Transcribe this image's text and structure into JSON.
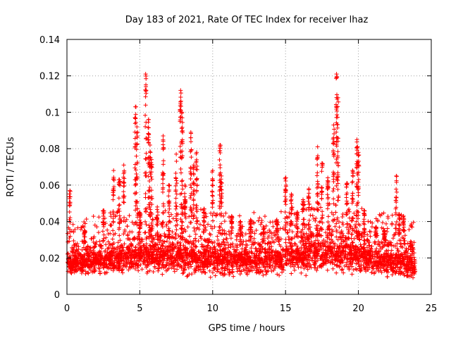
{
  "chart_data": {
    "type": "scatter",
    "title": "Day 183 of 2021, Rate Of TEC Index for receiver lhaz",
    "xlabel": "GPS time / hours",
    "ylabel": "ROTI / TECUs",
    "xlim": [
      0,
      25
    ],
    "ylim": [
      0,
      0.14
    ],
    "x_ticks": [
      "0",
      "5",
      "10",
      "15",
      "20",
      "25"
    ],
    "y_ticks": [
      "0",
      "0.02",
      "0.04",
      "0.06",
      "0.08",
      "0.1",
      "0.12",
      "0.14"
    ],
    "grid": true,
    "marker": "plus",
    "colors": {
      "series": "#ff0000",
      "grid": "#a0a0a0",
      "axes": "#000000"
    },
    "envelope": {
      "x": [
        0,
        1,
        2,
        3,
        4,
        5,
        6,
        7,
        8,
        9,
        10,
        11,
        12,
        13,
        14,
        15,
        16,
        17,
        18,
        19,
        20,
        21,
        22,
        23,
        24
      ],
      "low": [
        0.01,
        0.009,
        0.009,
        0.009,
        0.009,
        0.009,
        0.009,
        0.009,
        0.009,
        0.009,
        0.008,
        0.008,
        0.008,
        0.008,
        0.008,
        0.009,
        0.009,
        0.009,
        0.009,
        0.009,
        0.009,
        0.008,
        0.008,
        0.006,
        0.006
      ],
      "high": [
        0.022,
        0.024,
        0.026,
        0.027,
        0.029,
        0.03,
        0.031,
        0.031,
        0.03,
        0.029,
        0.028,
        0.027,
        0.027,
        0.027,
        0.028,
        0.03,
        0.031,
        0.032,
        0.032,
        0.031,
        0.03,
        0.028,
        0.027,
        0.026,
        0.022
      ]
    },
    "spikes": [
      [
        0.2,
        0.057
      ],
      [
        1.2,
        0.035
      ],
      [
        2.5,
        0.046
      ],
      [
        3.2,
        0.068
      ],
      [
        3.6,
        0.063
      ],
      [
        3.9,
        0.071
      ],
      [
        4.7,
        0.103
      ],
      [
        4.8,
        0.092
      ],
      [
        5.0,
        0.045
      ],
      [
        5.4,
        0.121
      ],
      [
        5.6,
        0.096
      ],
      [
        5.7,
        0.082
      ],
      [
        5.8,
        0.074
      ],
      [
        6.2,
        0.048
      ],
      [
        6.6,
        0.087
      ],
      [
        7.0,
        0.06
      ],
      [
        7.5,
        0.077
      ],
      [
        7.8,
        0.112
      ],
      [
        7.9,
        0.1
      ],
      [
        8.1,
        0.06
      ],
      [
        8.5,
        0.089
      ],
      [
        8.7,
        0.071
      ],
      [
        8.9,
        0.078
      ],
      [
        9.4,
        0.047
      ],
      [
        10.0,
        0.068
      ],
      [
        10.5,
        0.082
      ],
      [
        10.6,
        0.065
      ],
      [
        11.3,
        0.043
      ],
      [
        11.9,
        0.04
      ],
      [
        12.6,
        0.041
      ],
      [
        13.5,
        0.037
      ],
      [
        14.4,
        0.041
      ],
      [
        15.0,
        0.064
      ],
      [
        15.4,
        0.055
      ],
      [
        15.8,
        0.045
      ],
      [
        16.2,
        0.052
      ],
      [
        16.6,
        0.058
      ],
      [
        17.2,
        0.081
      ],
      [
        17.5,
        0.072
      ],
      [
        17.9,
        0.064
      ],
      [
        18.3,
        0.093
      ],
      [
        18.5,
        0.121
      ],
      [
        18.6,
        0.108
      ],
      [
        19.2,
        0.061
      ],
      [
        19.6,
        0.068
      ],
      [
        19.9,
        0.085
      ],
      [
        20.0,
        0.078
      ],
      [
        20.4,
        0.046
      ],
      [
        21.2,
        0.037
      ],
      [
        21.8,
        0.035
      ],
      [
        22.6,
        0.065
      ],
      [
        22.8,
        0.044
      ],
      [
        23.1,
        0.043
      ],
      [
        23.6,
        0.026
      ]
    ]
  }
}
